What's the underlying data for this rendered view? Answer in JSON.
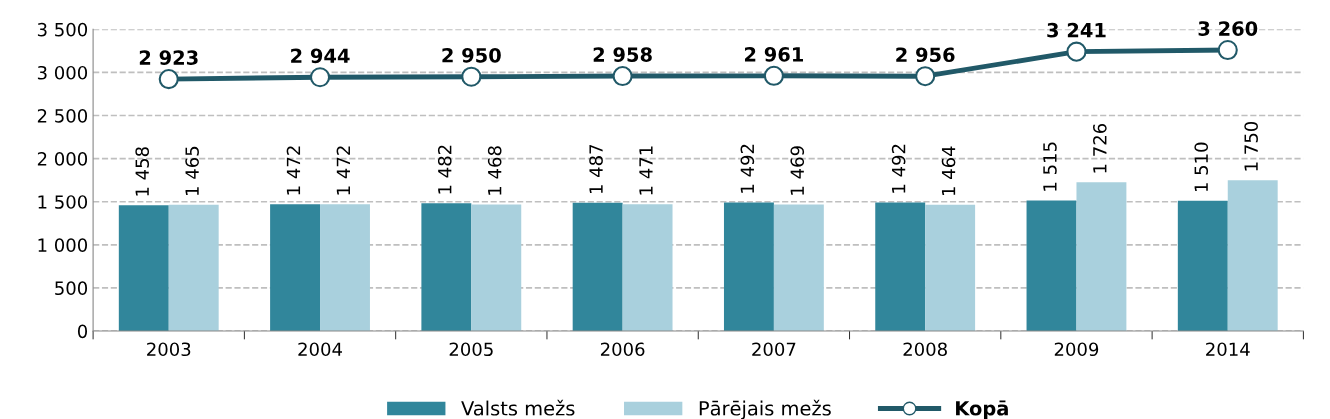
{
  "chart_data": {
    "type": "bar",
    "categories": [
      "2003",
      "2004",
      "2005",
      "2006",
      "2007",
      "2008",
      "2009",
      "2014"
    ],
    "series": [
      {
        "name": "Valsts mežs",
        "color": "#31869b",
        "values": [
          1458,
          1472,
          1482,
          1487,
          1492,
          1492,
          1515,
          1510
        ],
        "value_labels": [
          "1 458",
          "1 472",
          "1 482",
          "1 487",
          "1 492",
          "1 492",
          "1 515",
          "1 510"
        ]
      },
      {
        "name": "Pārējais mežs",
        "color": "#a9d0dd",
        "values": [
          1465,
          1472,
          1468,
          1471,
          1469,
          1464,
          1726,
          1750
        ],
        "value_labels": [
          "1 465",
          "1 472",
          "1 468",
          "1 471",
          "1 469",
          "1 464",
          "1 726",
          "1 750"
        ]
      },
      {
        "name": "Kopā",
        "type": "line",
        "color": "#215968",
        "marker": "circle",
        "values": [
          2923,
          2944,
          2950,
          2958,
          2961,
          2956,
          3241,
          3260
        ],
        "value_labels": [
          "2 923",
          "2 944",
          "2 950",
          "2 958",
          "2 961",
          "2 956",
          "3 241",
          "3 260"
        ]
      }
    ],
    "ylim": [
      0,
      3500
    ],
    "yticks": [
      0,
      500,
      {
        "value": 1000,
        "label": "1 000"
      },
      {
        "value": 1500,
        "label": "1 500"
      },
      {
        "value": 2000,
        "label": "2 000"
      },
      {
        "value": 2500,
        "label": "2 500"
      },
      {
        "value": 3000,
        "label": "3 000"
      },
      {
        "value": 3500,
        "label": "3 500"
      }
    ],
    "grid": "y",
    "legend": "bottom"
  }
}
